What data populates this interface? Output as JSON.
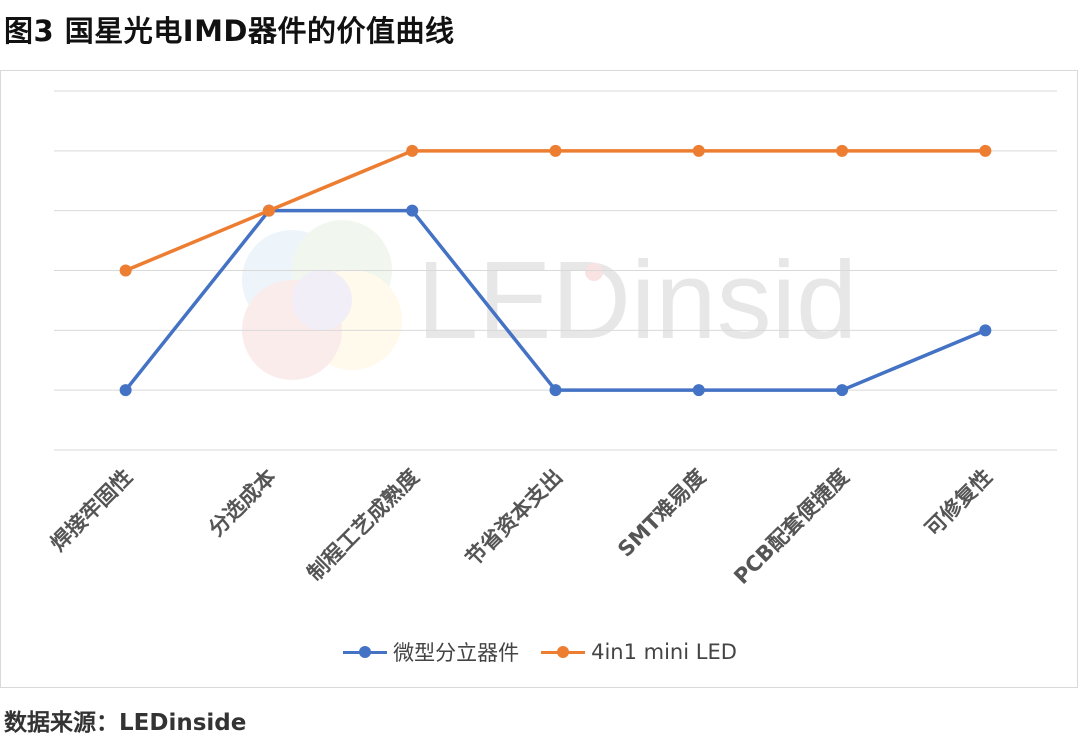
{
  "title": "图3 国星光电IMD器件的价值曲线",
  "source_text": "数据来源：LEDinside",
  "watermark_text": "LEDinside",
  "chart_data": {
    "type": "line",
    "categories": [
      "焊接牢固性",
      "分选成本",
      "制程工艺成熟度",
      "节省资本支出",
      "SMT难易度",
      "PCB配套便捷度",
      "可修复性"
    ],
    "series": [
      {
        "name": "微型分立器件",
        "color": "#4472C4",
        "values": [
          1,
          4,
          4,
          1,
          1,
          1,
          2
        ]
      },
      {
        "name": "4in1 mini LED",
        "color": "#ED7D31",
        "values": [
          3,
          4,
          5,
          5,
          5,
          5,
          5
        ]
      }
    ],
    "ylim": [
      0,
      6
    ],
    "grid": true,
    "y_tick_labels_shown": false,
    "legend": "bottom"
  }
}
